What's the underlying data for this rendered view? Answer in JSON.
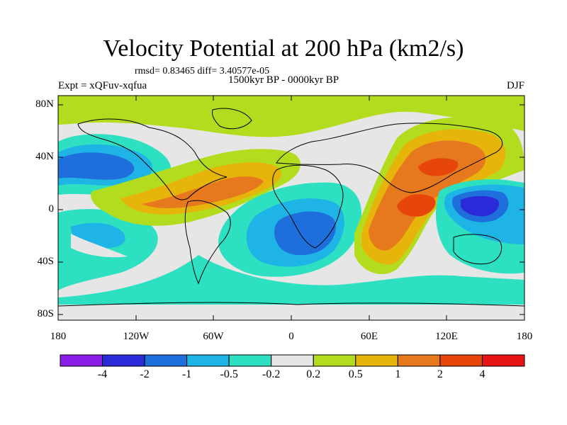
{
  "title": "Velocity Potential at 200 hPa (km2/s)",
  "stats_line": "rmsd= 0.83465 diff= 3.40577e-05",
  "period_label": "1500kyr BP - 0000kyr BP",
  "experiment_label": "Expt = xQFuv-xqfua",
  "season_label": "DJF",
  "lat_labels": [
    "80N",
    "40N",
    "0",
    "40S",
    "80S"
  ],
  "lon_labels": [
    "180",
    "120W",
    "60W",
    "0",
    "60E",
    "120E",
    "180"
  ],
  "colorbar": {
    "colors": [
      "#8a1ee6",
      "#2a2ad8",
      "#1e6fdc",
      "#1eb4e6",
      "#2ee0c2",
      "#e6e6e6",
      "#b4dc1e",
      "#e6b40a",
      "#e6781e",
      "#e6460a",
      "#e61414"
    ],
    "labels": [
      "-4",
      "-2",
      "-1",
      "-0.5",
      "-0.2",
      "0.2",
      "0.5",
      "1",
      "2",
      "4"
    ]
  },
  "palette": {
    "neg_strong": "#2a2ad8",
    "neg_mid": "#1e6fdc",
    "neg_light": "#1eb4e6",
    "neg_weak": "#2ee0c2",
    "neutral": "#e6e6e6",
    "pos_weak": "#b4dc1e",
    "pos_light": "#e6b40a",
    "pos_mid": "#e6781e",
    "pos_strong": "#e6460a"
  }
}
